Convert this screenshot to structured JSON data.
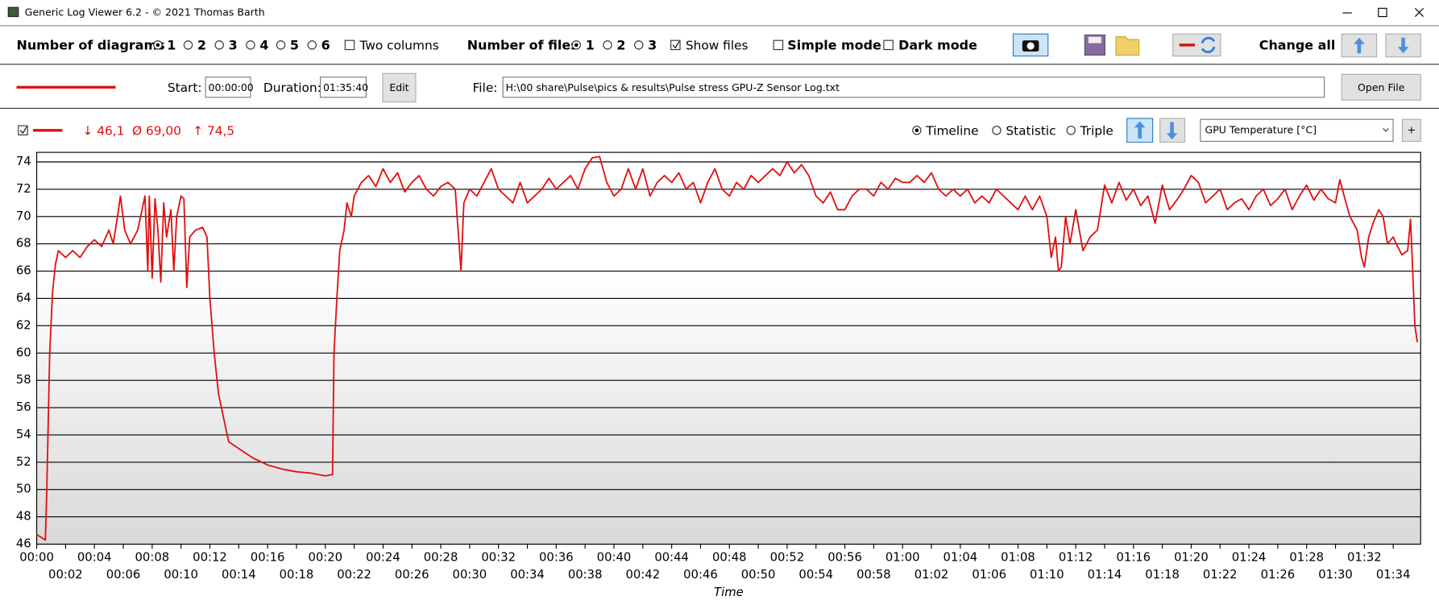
{
  "window": {
    "title": "Generic Log Viewer 6.2 - © 2021 Thomas Barth"
  },
  "toolbar": {
    "diagrams_label": "Number of diagrams",
    "diagram_options": [
      "1",
      "2",
      "3",
      "4",
      "5",
      "6"
    ],
    "two_columns": "Two columns",
    "files_label": "Number of files",
    "file_options": [
      "1",
      "2",
      "3"
    ],
    "show_files": "Show files",
    "simple_mode": "Simple mode",
    "dark_mode": "Dark mode",
    "change_all": "Change all"
  },
  "file_bar": {
    "start_label": "Start:",
    "start": "00:00:00",
    "duration_label": "Duration:",
    "duration": "01:35:40",
    "edit": "Edit",
    "file_label": "File:",
    "file_path": "H:\\00 share\\Pulse\\pics & results\\Pulse stress GPU-Z Sensor Log.txt",
    "open_file": "Open File"
  },
  "chart_header": {
    "min": "↓ 46,1",
    "avg": "Ø 69,00",
    "max": "↑ 74,5",
    "views": [
      "Timeline",
      "Statistic",
      "Triple"
    ],
    "sensor": "GPU Temperature [°C]",
    "add": "+"
  },
  "chart_data": {
    "type": "line",
    "x_label": "Time",
    "grid": true,
    "xlim": [
      0,
      95.9
    ],
    "ylim": [
      46,
      74.7
    ],
    "yticks": [
      46,
      48,
      50,
      52,
      54,
      56,
      58,
      60,
      62,
      64,
      66,
      68,
      70,
      72,
      74
    ],
    "xticks": [
      {
        "value": 0,
        "label": "00:00"
      },
      {
        "value": 2,
        "label": "00:02"
      },
      {
        "value": 4,
        "label": "00:04"
      },
      {
        "value": 6,
        "label": "00:06"
      },
      {
        "value": 8,
        "label": "00:08"
      },
      {
        "value": 10,
        "label": "00:10"
      },
      {
        "value": 12,
        "label": "00:12"
      },
      {
        "value": 14,
        "label": "00:14"
      },
      {
        "value": 16,
        "label": "00:16"
      },
      {
        "value": 18,
        "label": "00:18"
      },
      {
        "value": 20,
        "label": "00:20"
      },
      {
        "value": 22,
        "label": "00:22"
      },
      {
        "value": 24,
        "label": "00:24"
      },
      {
        "value": 26,
        "label": "00:26"
      },
      {
        "value": 28,
        "label": "00:28"
      },
      {
        "value": 30,
        "label": "00:30"
      },
      {
        "value": 32,
        "label": "00:32"
      },
      {
        "value": 34,
        "label": "00:34"
      },
      {
        "value": 36,
        "label": "00:36"
      },
      {
        "value": 38,
        "label": "00:38"
      },
      {
        "value": 40,
        "label": "00:40"
      },
      {
        "value": 42,
        "label": "00:42"
      },
      {
        "value": 44,
        "label": "00:44"
      },
      {
        "value": 46,
        "label": "00:46"
      },
      {
        "value": 48,
        "label": "00:48"
      },
      {
        "value": 50,
        "label": "00:50"
      },
      {
        "value": 52,
        "label": "00:52"
      },
      {
        "value": 54,
        "label": "00:54"
      },
      {
        "value": 56,
        "label": "00:56"
      },
      {
        "value": 58,
        "label": "00:58"
      },
      {
        "value": 60,
        "label": "01:00"
      },
      {
        "value": 62,
        "label": "01:02"
      },
      {
        "value": 64,
        "label": "01:04"
      },
      {
        "value": 66,
        "label": "01:06"
      },
      {
        "value": 68,
        "label": "01:08"
      },
      {
        "value": 70,
        "label": "01:10"
      },
      {
        "value": 72,
        "label": "01:12"
      },
      {
        "value": 74,
        "label": "01:14"
      },
      {
        "value": 76,
        "label": "01:16"
      },
      {
        "value": 78,
        "label": "01:18"
      },
      {
        "value": 80,
        "label": "01:20"
      },
      {
        "value": 82,
        "label": "01:22"
      },
      {
        "value": 84,
        "label": "01:24"
      },
      {
        "value": 86,
        "label": "01:26"
      },
      {
        "value": 88,
        "label": "01:28"
      },
      {
        "value": 90,
        "label": "01:30"
      },
      {
        "value": 92,
        "label": "01:32"
      },
      {
        "value": 94,
        "label": "01:34"
      }
    ],
    "x": [
      0,
      0.3,
      0.6,
      0.7,
      0.9,
      1.1,
      1.3,
      1.5,
      2,
      2.5,
      3,
      3.5,
      4,
      4.5,
      5,
      5.3,
      5.6,
      5.8,
      6.1,
      6.5,
      7,
      7.3,
      7.5,
      7.7,
      7.8,
      8,
      8.2,
      8.4,
      8.6,
      8.8,
      9,
      9.3,
      9.5,
      9.7,
      10,
      10.2,
      10.4,
      10.6,
      11,
      11.5,
      11.8,
      12,
      12.3,
      12.6,
      13,
      13.3,
      14,
      15,
      16,
      17,
      18,
      19,
      20,
      20.5,
      20.6,
      20.8,
      21,
      21.3,
      21.5,
      21.8,
      22,
      22.5,
      23,
      23.5,
      24,
      24.5,
      25,
      25.5,
      26,
      26.5,
      27,
      27.5,
      28,
      28.5,
      29,
      29.4,
      29.6,
      30,
      30.5,
      31,
      31.5,
      32,
      32.5,
      33,
      33.5,
      34,
      34.5,
      35,
      35.5,
      36,
      36.5,
      37,
      37.5,
      38,
      38.5,
      39,
      39.5,
      40,
      40.5,
      41,
      41.5,
      42,
      42.5,
      43,
      43.5,
      44,
      44.5,
      45,
      45.5,
      46,
      46.5,
      47,
      47.5,
      48,
      48.5,
      49,
      49.5,
      50,
      50.5,
      51,
      51.5,
      52,
      52.5,
      53,
      53.5,
      54,
      54.5,
      55,
      55.5,
      56,
      56.5,
      57,
      57.5,
      58,
      58.5,
      59,
      59.5,
      60,
      60.5,
      61,
      61.5,
      62,
      62.5,
      63,
      63.5,
      64,
      64.5,
      65,
      65.5,
      66,
      66.5,
      67,
      67.5,
      68,
      68.5,
      69,
      69.5,
      70,
      70.3,
      70.6,
      70.8,
      71,
      71.3,
      71.6,
      72,
      72.5,
      73,
      73.5,
      74,
      74.5,
      75,
      75.5,
      76,
      76.5,
      77,
      77.5,
      78,
      78.5,
      79,
      79.5,
      80,
      80.5,
      81,
      81.5,
      82,
      82.5,
      83,
      83.5,
      84,
      84.5,
      85,
      85.5,
      86,
      86.5,
      87,
      87.5,
      88,
      88.5,
      89,
      89.5,
      90,
      90.3,
      90.6,
      91,
      91.5,
      91.8,
      92,
      92.3,
      92.6,
      93,
      93.3,
      93.6,
      94,
      94.3,
      94.6,
      95,
      95.2,
      95.35,
      95.5,
      95.67
    ],
    "series": [
      {
        "color": "#e01010",
        "values": [
          46.7,
          46.5,
          46.3,
          50,
          60,
          64.5,
          66.5,
          67.5,
          67,
          67.5,
          67,
          67.8,
          68.3,
          67.8,
          69,
          68,
          70,
          71.5,
          69,
          68,
          69,
          70.5,
          71.5,
          66,
          71.5,
          65.5,
          71.3,
          69,
          65.2,
          71,
          68.5,
          70.5,
          66,
          70,
          71.5,
          71.3,
          64.8,
          68.5,
          69,
          69.2,
          68.5,
          64,
          60,
          57,
          55,
          53.5,
          53,
          52.3,
          51.8,
          51.5,
          51.3,
          51.2,
          51,
          51.1,
          60,
          64,
          67.5,
          69,
          71,
          70,
          71.5,
          72.5,
          73,
          72.2,
          73.5,
          72.5,
          73.2,
          71.8,
          72.5,
          73,
          72,
          71.5,
          72.2,
          72.5,
          72,
          66,
          71,
          72,
          71.5,
          72.5,
          73.5,
          72,
          71.5,
          71,
          72.5,
          71,
          71.5,
          72,
          72.8,
          72,
          72.5,
          73,
          72,
          73.5,
          74.3,
          74.4,
          72.5,
          71.5,
          72,
          73.5,
          72,
          73.5,
          71.5,
          72.5,
          73,
          72.5,
          73.2,
          72,
          72.5,
          71,
          72.5,
          73.5,
          72,
          71.5,
          72.5,
          72,
          73,
          72.5,
          73,
          73.5,
          73,
          74,
          73.2,
          73.8,
          73,
          71.5,
          71,
          71.8,
          70.5,
          70.5,
          71.5,
          72,
          72,
          71.5,
          72.5,
          72,
          72.8,
          72.5,
          72.5,
          73,
          72.5,
          73.2,
          72,
          71.5,
          72,
          71.5,
          72,
          71,
          71.5,
          71,
          72,
          71.5,
          71,
          70.5,
          71.5,
          70.5,
          71.5,
          70,
          67,
          68.5,
          66,
          66.3,
          70,
          68,
          70.5,
          67.5,
          68.5,
          69,
          72.3,
          71,
          72.5,
          71.2,
          72,
          70.8,
          71.5,
          69.5,
          72.3,
          70.5,
          71.2,
          72,
          73,
          72.5,
          71,
          71.5,
          72,
          70.5,
          71,
          71.3,
          70.5,
          71.5,
          72,
          70.8,
          71.3,
          72,
          70.5,
          71.5,
          72.3,
          71.2,
          72,
          71.3,
          71,
          72.7,
          71.5,
          70,
          69,
          67,
          66.3,
          68.5,
          69.5,
          70.5,
          70,
          68,
          68.5,
          67.8,
          67.2,
          67.5,
          69.8,
          66,
          62,
          60.8
        ]
      }
    ]
  }
}
